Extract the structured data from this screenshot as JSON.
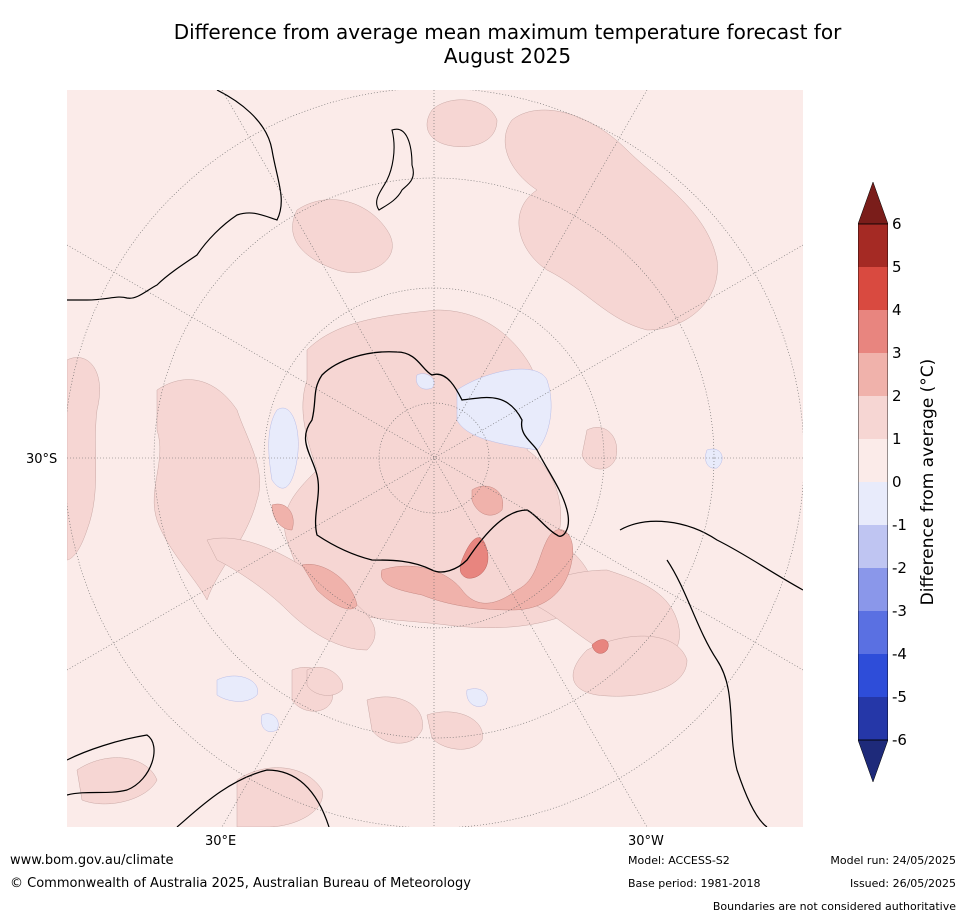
{
  "title_line1": "Difference from average mean maximum temperature forecast for",
  "title_line2": "August 2025",
  "labels": {
    "lat_left": "30°S",
    "lon_bottom_left": "30°E",
    "lon_bottom_right": "30°W"
  },
  "colorbar": {
    "label": "Difference from average (°C)",
    "ticks": [
      "6",
      "5",
      "4",
      "3",
      "2",
      "1",
      "0",
      "-1",
      "-2",
      "-3",
      "-4",
      "-5",
      "-6"
    ],
    "colors": {
      "above_max": "#7a1d1a",
      "5_to_6": "#a52a24",
      "4_to_5": "#d94a40",
      "3_to_4": "#e8857f",
      "2_to_3": "#f0b2ab",
      "1_to_2": "#f6d6d3",
      "0_to_1": "#fbebe9",
      "m1_to_0": "#e8ebfb",
      "m2_to_m1": "#bfc5f2",
      "m3_to_m2": "#8a97ea",
      "m4_to_m3": "#5a70e2",
      "m5_to_m4": "#2e4dd9",
      "m6_to_m5": "#2537a8",
      "below_min": "#1e2a7a"
    }
  },
  "footer": {
    "website": "www.bom.gov.au/climate",
    "copyright": "© Commonwealth of Australia 2025, Australian Bureau of Meteorology",
    "model": "Model: ACCESS-S2",
    "base_period": "Base period: 1981-2018",
    "model_run": "Model run: 24/05/2025",
    "issued": "Issued: 26/05/2025",
    "disclaimer": "Boundaries are not considered authoritative"
  }
}
